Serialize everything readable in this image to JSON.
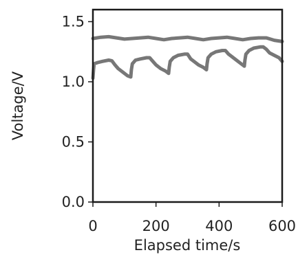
{
  "chart_data": {
    "type": "line",
    "title": "",
    "xlabel": "Elapsed time/s",
    "ylabel": "Voltage/V",
    "xlim": [
      0,
      600
    ],
    "ylim": [
      0.0,
      1.6
    ],
    "x_ticks": [
      0,
      200,
      400,
      600
    ],
    "x_tick_labels": [
      "0",
      "200",
      "400",
      "600"
    ],
    "y_ticks": [
      0.0,
      0.5,
      1.0,
      1.5
    ],
    "y_tick_labels": [
      "0.0",
      "0.5",
      "1.0",
      "1.5"
    ],
    "grid": false,
    "legend": "none",
    "line_color": "#777777",
    "series": [
      {
        "x": [
          0,
          25,
          50,
          75,
          100,
          125,
          150,
          175,
          200,
          225,
          250,
          275,
          300,
          325,
          350,
          375,
          400,
          425,
          450,
          475,
          500,
          525,
          550,
          575,
          600
        ],
        "y": [
          1.36,
          1.37,
          1.375,
          1.365,
          1.355,
          1.36,
          1.365,
          1.37,
          1.36,
          1.35,
          1.36,
          1.365,
          1.37,
          1.36,
          1.35,
          1.36,
          1.365,
          1.37,
          1.36,
          1.35,
          1.36,
          1.365,
          1.365,
          1.345,
          1.335
        ]
      },
      {
        "x": [
          0,
          2,
          4,
          15,
          30,
          50,
          60,
          70,
          80,
          95,
          110,
          120,
          122,
          125,
          135,
          150,
          170,
          180,
          190,
          200,
          215,
          230,
          240,
          242,
          245,
          255,
          270,
          290,
          300,
          310,
          320,
          335,
          350,
          360,
          362,
          365,
          375,
          390,
          410,
          420,
          430,
          440,
          455,
          470,
          480,
          482,
          485,
          495,
          510,
          530,
          540,
          550,
          560,
          575,
          590,
          600
        ],
        "y": [
          1.03,
          1.1,
          1.15,
          1.16,
          1.17,
          1.18,
          1.175,
          1.14,
          1.11,
          1.08,
          1.05,
          1.04,
          1.1,
          1.15,
          1.18,
          1.19,
          1.2,
          1.2,
          1.17,
          1.14,
          1.11,
          1.09,
          1.07,
          1.12,
          1.17,
          1.2,
          1.22,
          1.23,
          1.23,
          1.19,
          1.17,
          1.14,
          1.12,
          1.1,
          1.15,
          1.2,
          1.23,
          1.25,
          1.26,
          1.26,
          1.23,
          1.21,
          1.18,
          1.15,
          1.13,
          1.18,
          1.23,
          1.26,
          1.28,
          1.29,
          1.29,
          1.27,
          1.24,
          1.22,
          1.2,
          1.17
        ]
      }
    ]
  }
}
